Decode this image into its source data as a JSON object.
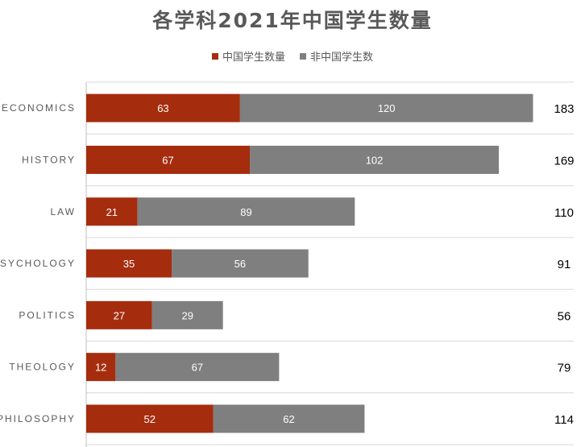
{
  "chart_data": {
    "type": "bar",
    "orientation": "horizontal",
    "stacked": true,
    "title": "各学科2021年中国学生数量",
    "categories": [
      "ECONOMICS",
      "HISTORY",
      "LAW",
      "PSYCHOLOGY",
      "POLITICS",
      "THEOLOGY",
      "PHILOSOPHY"
    ],
    "series": [
      {
        "name": "中国学生数量",
        "color": "#a52d0e",
        "values": [
          63,
          67,
          21,
          35,
          27,
          12,
          52
        ]
      },
      {
        "name": "非中国学生数",
        "color": "#7f7f7f",
        "values": [
          120,
          102,
          89,
          56,
          29,
          67,
          62
        ]
      }
    ],
    "totals": [
      183,
      169,
      110,
      91,
      56,
      79,
      114
    ],
    "xlim": [
      0,
      200
    ],
    "legend_position": "top",
    "grid": "horizontal separators between categories"
  }
}
